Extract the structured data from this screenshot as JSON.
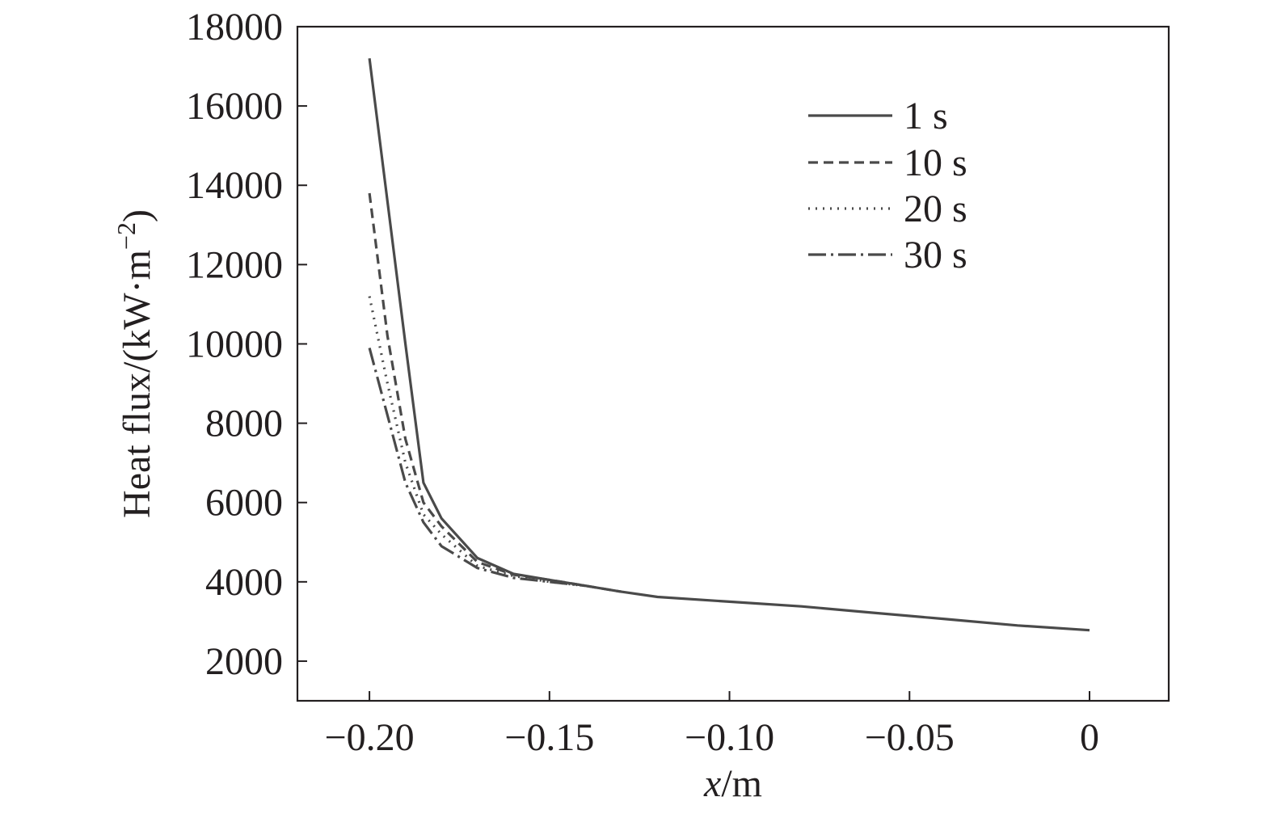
{
  "chart_data": {
    "type": "line",
    "title": "",
    "xlabel_italic": "x",
    "xlabel_unit": "/m",
    "ylabel_text": "Heat flux/(kW·m",
    "ylabel_sup": "−2",
    "ylabel_close": ")",
    "xlim": [
      -0.22,
      0.022
    ],
    "ylim": [
      1000,
      18000
    ],
    "x_ticks": [
      -0.2,
      -0.15,
      -0.1,
      -0.05,
      0
    ],
    "x_tick_labels": [
      "−0.20",
      "−0.15",
      "−0.10",
      "−0.05",
      "0"
    ],
    "y_ticks": [
      2000,
      4000,
      6000,
      8000,
      10000,
      12000,
      14000,
      16000,
      18000
    ],
    "y_tick_labels": [
      "2000",
      "4000",
      "6000",
      "8000",
      "10000",
      "12000",
      "14000",
      "16000",
      "18000"
    ],
    "grid": false,
    "legend_position": "top-right",
    "series": [
      {
        "name": "1 s",
        "dash": "solid",
        "x": [
          -0.2,
          -0.19,
          -0.185,
          -0.18,
          -0.17,
          -0.16,
          -0.15,
          -0.14,
          -0.13,
          -0.12,
          -0.1,
          -0.08,
          -0.06,
          -0.04,
          -0.02,
          0
        ],
        "y": [
          17200,
          10000,
          6500,
          5600,
          4600,
          4200,
          4050,
          3900,
          3750,
          3620,
          3500,
          3380,
          3220,
          3060,
          2900,
          2780
        ]
      },
      {
        "name": "10 s",
        "dash": "dashed",
        "x": [
          -0.2,
          -0.195,
          -0.19,
          -0.185,
          -0.18,
          -0.17,
          -0.16,
          -0.15,
          -0.14,
          -0.13
        ],
        "y": [
          13800,
          10200,
          7600,
          6000,
          5400,
          4500,
          4180,
          4050,
          3900,
          3750
        ]
      },
      {
        "name": "20 s",
        "dash": "dotted",
        "x": [
          -0.2,
          -0.195,
          -0.19,
          -0.185,
          -0.18,
          -0.17,
          -0.16,
          -0.15,
          -0.14
        ],
        "y": [
          11200,
          9000,
          7000,
          5700,
          5200,
          4400,
          4150,
          4000,
          3900
        ]
      },
      {
        "name": "30 s",
        "dash": "dash-dot",
        "x": [
          -0.2,
          -0.195,
          -0.19,
          -0.185,
          -0.18,
          -0.17,
          -0.16,
          -0.15,
          -0.14
        ],
        "y": [
          9900,
          8200,
          6500,
          5500,
          4900,
          4350,
          4100,
          4000,
          3900
        ]
      }
    ]
  }
}
